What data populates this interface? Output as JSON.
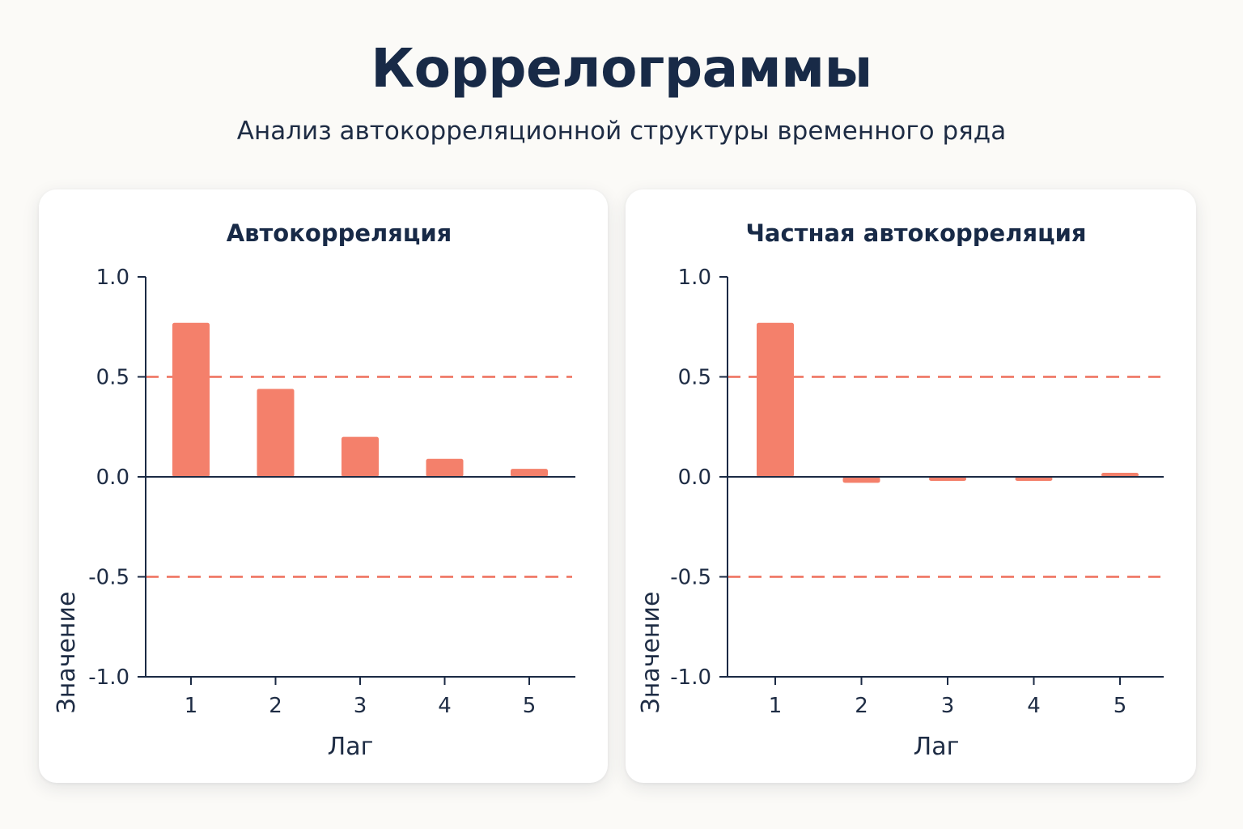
{
  "header": {
    "title": "Коррелограммы",
    "subtitle": "Анализ автокорреляционной структуры временного ряда"
  },
  "colors": {
    "bar": "#f4806b",
    "threshold": "#ee6f5b",
    "axis": "#1b2a44",
    "text": "#1e2c44"
  },
  "chart_data": [
    {
      "type": "bar",
      "title": "Автокорреляция",
      "xlabel": "Лаг",
      "ylabel": "Значение",
      "categories": [
        "1",
        "2",
        "3",
        "4",
        "5"
      ],
      "values": [
        0.77,
        0.44,
        0.2,
        0.09,
        0.04
      ],
      "ylim": [
        -1.0,
        1.0
      ],
      "yticks": [
        "1.0",
        "0.5",
        "0.0",
        "-0.5",
        "-1.0"
      ],
      "ytick_values": [
        1.0,
        0.5,
        0.0,
        -0.5,
        -1.0
      ],
      "threshold_lines": [
        0.5,
        -0.5
      ],
      "grid": false
    },
    {
      "type": "bar",
      "title": "Частная автокорреляция",
      "xlabel": "Лаг",
      "ylabel": "Значение",
      "categories": [
        "1",
        "2",
        "3",
        "4",
        "5"
      ],
      "values": [
        0.77,
        -0.03,
        -0.02,
        -0.02,
        0.02
      ],
      "ylim": [
        -1.0,
        1.0
      ],
      "yticks": [
        "1.0",
        "0.5",
        "0.0",
        "-0.5",
        "-1.0"
      ],
      "ytick_values": [
        1.0,
        0.5,
        0.0,
        -0.5,
        -1.0
      ],
      "threshold_lines": [
        0.5,
        -0.5
      ],
      "grid": false
    }
  ]
}
